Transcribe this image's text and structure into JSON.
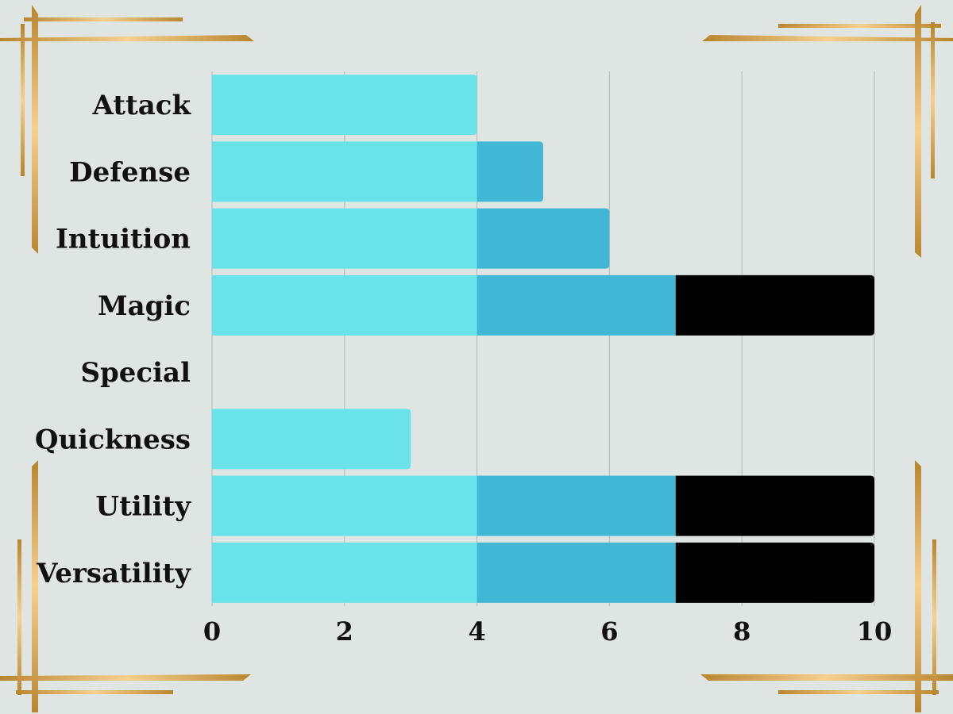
{
  "chart_data": {
    "type": "bar",
    "orientation": "horizontal",
    "stacked": true,
    "categories": [
      "Attack",
      "Defense",
      "Intuition",
      "Magic",
      "Special",
      "Quickness",
      "Utility",
      "Versatility"
    ],
    "series": [
      {
        "color": "#69e3e9",
        "values": [
          4,
          4,
          4,
          4,
          0,
          3,
          4,
          4
        ]
      },
      {
        "color": "#42b7d5",
        "values": [
          0,
          1,
          2,
          3,
          0,
          0,
          3,
          3
        ]
      },
      {
        "color": "#000000",
        "values": [
          0,
          0,
          0,
          3,
          0,
          0,
          3,
          3
        ]
      }
    ],
    "xlim": [
      0,
      10
    ],
    "xticks": [
      "0",
      "2",
      "4",
      "6",
      "8",
      "10"
    ],
    "grid": true,
    "title": "",
    "xlabel": "",
    "ylabel": "",
    "frame_color": "#c9a24a"
  }
}
